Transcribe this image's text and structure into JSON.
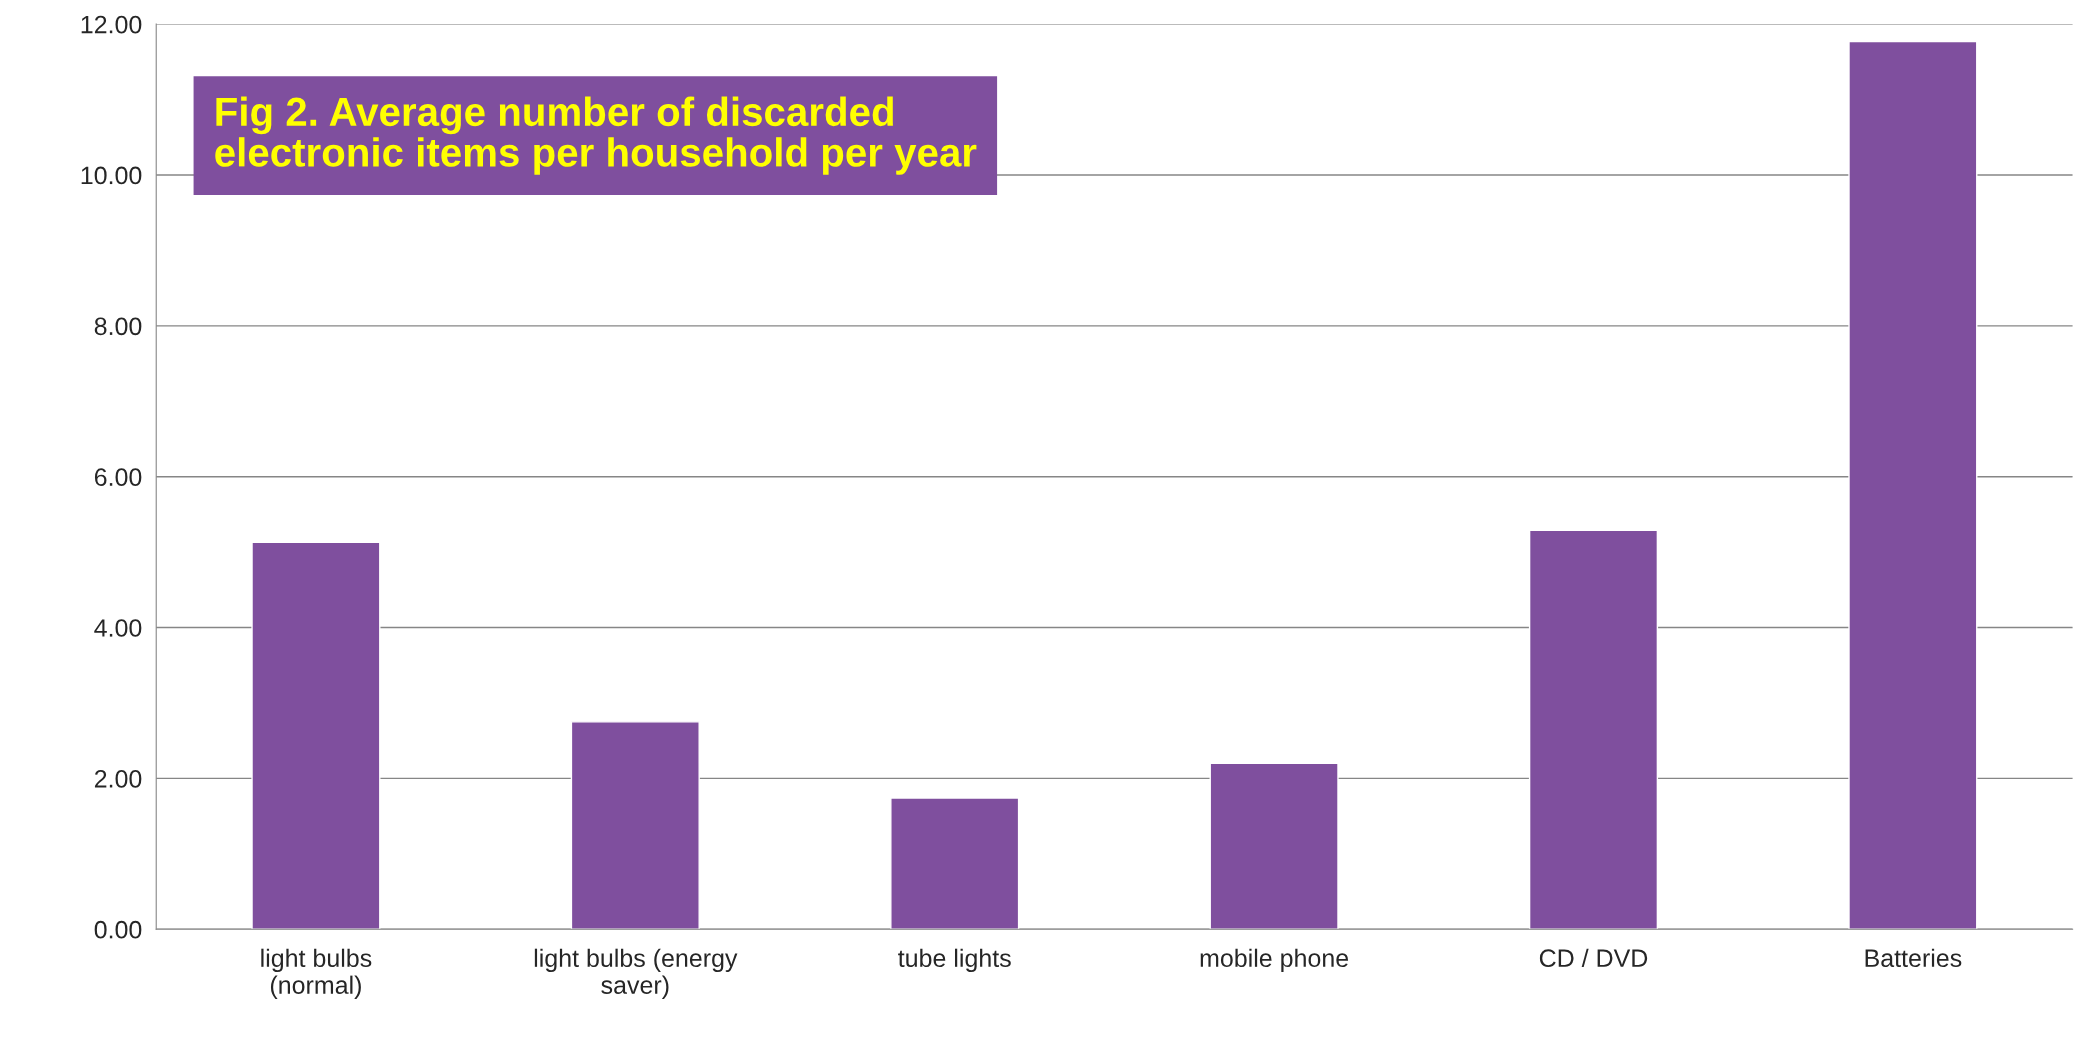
{
  "chart_data": {
    "type": "bar",
    "title": "Fig 2. Average number of discarded\nelectronic items per household per year",
    "categories": [
      "light bulbs\n(normal)",
      "light bulbs (energy\nsaver)",
      "tube lights",
      "mobile phone",
      "CD / DVD",
      "Batteries"
    ],
    "values": [
      5.13,
      2.75,
      1.74,
      2.2,
      5.29,
      11.77
    ],
    "color": "#7f4f9e",
    "ylim": [
      0,
      12
    ],
    "yticks": [
      {
        "value": 0,
        "label": "0.00"
      },
      {
        "value": 2,
        "label": "2.00"
      },
      {
        "value": 4,
        "label": "4.00"
      },
      {
        "value": 6,
        "label": "6.00"
      },
      {
        "value": 8,
        "label": "8.00"
      },
      {
        "value": 10,
        "label": "10.00"
      },
      {
        "value": 12,
        "label": "12.00"
      }
    ],
    "grid": "y",
    "legend": false
  }
}
